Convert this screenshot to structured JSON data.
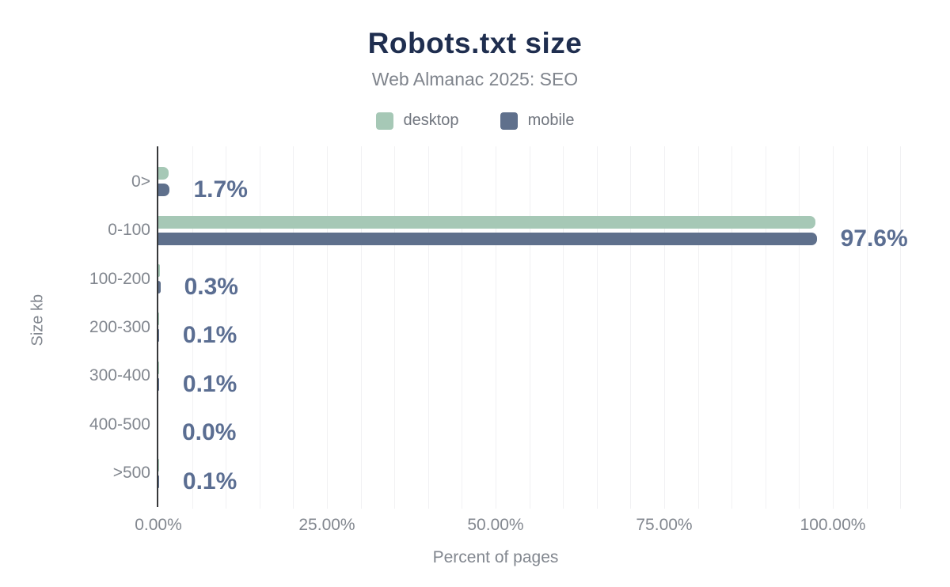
{
  "figure": {
    "title": "Robots.txt size",
    "subtitle": "Web Almanac 2025: SEO"
  },
  "colors": {
    "title": "#1f2e4f",
    "subtitle": "#7f848c",
    "legend_text": "#71767f",
    "axis_text": "#82878f",
    "value_label": "#5b6e92",
    "axis_line": "#37383a",
    "gridline": "#f1f1f3",
    "desktop": "#a6c8b6",
    "mobile": "#5f708c"
  },
  "chart_data": {
    "type": "bar",
    "orientation": "horizontal",
    "title": "Robots.txt size",
    "subtitle": "Web Almanac 2025: SEO",
    "categories": [
      "0>",
      "0-100",
      "100-200",
      "200-300",
      "300-400",
      "400-500",
      ">500"
    ],
    "series": [
      {
        "name": "desktop",
        "color": "#a6c8b6",
        "values": [
          1.5,
          97.4,
          0.25,
          0.1,
          0.1,
          0.0,
          0.1
        ]
      },
      {
        "name": "mobile",
        "color": "#5f708c",
        "values": [
          1.7,
          97.6,
          0.3,
          0.1,
          0.1,
          0.0,
          0.1
        ]
      }
    ],
    "value_labels": [
      "1.7%",
      "97.6%",
      "0.3%",
      "0.1%",
      "0.1%",
      "0.0%",
      "0.1%"
    ],
    "value_labels_series": "mobile",
    "xlabel": "Percent of pages",
    "ylabel": "Size kb",
    "x_ticks": [
      "0.00%",
      "25.00%",
      "50.00%",
      "75.00%",
      "100.00%"
    ],
    "x_tick_values": [
      0,
      25,
      50,
      75,
      100
    ],
    "xlim": [
      0,
      111.5
    ],
    "grid": true,
    "grid_step_percent": 5,
    "legend_position": "top"
  }
}
